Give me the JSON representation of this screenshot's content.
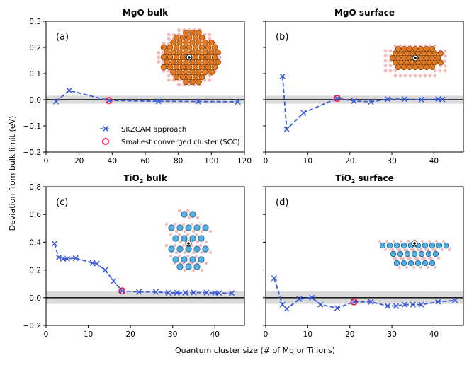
{
  "colors": {
    "line": "#3a5bd9",
    "scc": "#e8174a",
    "band": "#d9d9d9",
    "mg": "#e2781f",
    "mg_edge": "#8a3f00",
    "o": "#f3b9b9",
    "ti": "#59aee0",
    "ti_edge": "#1b5f8f"
  },
  "figure": {
    "ylabel": "Deviation from bulk limit (eV)",
    "xlabel": "Quantum cluster size (# of Mg or Ti ions)",
    "legend": {
      "series": "SKZCAM approach",
      "scc": "Smallest converged cluster (SCC)"
    }
  },
  "chart_data": [
    {
      "type": "line",
      "panel": "(a)",
      "title": "MgO bulk",
      "title_main": "MgO bulk",
      "title_sub": "",
      "title_tail": "",
      "x": [
        6,
        14,
        38,
        68,
        92,
        116
      ],
      "y": [
        -0.007,
        0.035,
        -0.003,
        -0.006,
        -0.007,
        -0.008
      ],
      "scc": {
        "x": 38,
        "y": -0.003
      },
      "band": [
        -0.015,
        0.015
      ],
      "xlim": [
        0,
        120
      ],
      "ylim": [
        -0.2,
        0.3
      ],
      "xticks": [
        0,
        20,
        40,
        60,
        80,
        100,
        120
      ],
      "yticks": [
        -0.2,
        -0.1,
        0.0,
        0.1,
        0.2,
        0.3
      ],
      "ytick_labels": [
        "−0.2",
        "−0.1",
        "0.0",
        "0.1",
        "0.2",
        "0.3"
      ],
      "cluster": "mgo_bulk"
    },
    {
      "type": "line",
      "panel": "(b)",
      "title": "MgO surface",
      "title_main": "MgO surface",
      "title_sub": "",
      "title_tail": "",
      "x": [
        4,
        5,
        9,
        17,
        21,
        25,
        29,
        33,
        37,
        41,
        42
      ],
      "y": [
        0.09,
        -0.113,
        -0.05,
        0.005,
        -0.005,
        -0.008,
        0.002,
        0.002,
        0.0,
        0.002,
        0.001
      ],
      "scc": {
        "x": 17,
        "y": 0.005
      },
      "band": [
        -0.015,
        0.015
      ],
      "xlim": [
        0,
        47
      ],
      "ylim": [
        -0.2,
        0.3
      ],
      "xticks": [
        0,
        10,
        20,
        30,
        40
      ],
      "yticks": [
        -0.2,
        -0.1,
        0.0,
        0.1,
        0.2,
        0.3
      ],
      "ytick_labels": [
        "",
        "",
        "",
        "",
        "",
        ""
      ],
      "cluster": "mgo_surface"
    },
    {
      "type": "line",
      "panel": "(c)",
      "title": "TiO2 bulk",
      "title_main": "TiO",
      "title_sub": "2",
      "title_tail": " bulk",
      "x": [
        2,
        3,
        4,
        5,
        7,
        11,
        12,
        14,
        16,
        18,
        22,
        26,
        29,
        31,
        33,
        35,
        38,
        40,
        41,
        44
      ],
      "y": [
        0.39,
        0.29,
        0.28,
        0.28,
        0.285,
        0.25,
        0.245,
        0.2,
        0.12,
        0.048,
        0.042,
        0.042,
        0.035,
        0.035,
        0.035,
        0.037,
        0.036,
        0.033,
        0.033,
        0.032
      ],
      "scc": {
        "x": 18,
        "y": 0.048
      },
      "band": [
        -0.045,
        0.045
      ],
      "xlim": [
        0,
        47
      ],
      "ylim": [
        -0.2,
        0.8
      ],
      "xticks": [
        0,
        10,
        20,
        30,
        40
      ],
      "yticks": [
        -0.2,
        0.0,
        0.2,
        0.4,
        0.6,
        0.8
      ],
      "ytick_labels": [
        "−0.2",
        "0.0",
        "0.2",
        "0.4",
        "0.6",
        "0.8"
      ],
      "cluster": "tio2_bulk"
    },
    {
      "type": "line",
      "panel": "(d)",
      "title": "TiO2 surface",
      "title_main": "TiO",
      "title_sub": "2",
      "title_tail": " surface",
      "x": [
        2,
        4,
        5,
        8,
        11,
        13,
        17,
        21,
        25,
        29,
        31,
        33,
        35,
        37,
        41,
        45
      ],
      "y": [
        0.14,
        -0.05,
        -0.08,
        -0.01,
        0.0,
        -0.05,
        -0.075,
        -0.03,
        -0.03,
        -0.06,
        -0.06,
        -0.05,
        -0.05,
        -0.05,
        -0.03,
        -0.02
      ],
      "scc": {
        "x": 21,
        "y": -0.03
      },
      "band": [
        -0.045,
        0.045
      ],
      "xlim": [
        0,
        47
      ],
      "ylim": [
        -0.2,
        0.8
      ],
      "xticks": [
        0,
        10,
        20,
        30,
        40
      ],
      "yticks": [
        -0.2,
        0.0,
        0.2,
        0.4,
        0.6,
        0.8
      ],
      "ytick_labels": [
        "",
        "",
        "",
        "",
        "",
        ""
      ],
      "cluster": "tio2_surface"
    }
  ]
}
